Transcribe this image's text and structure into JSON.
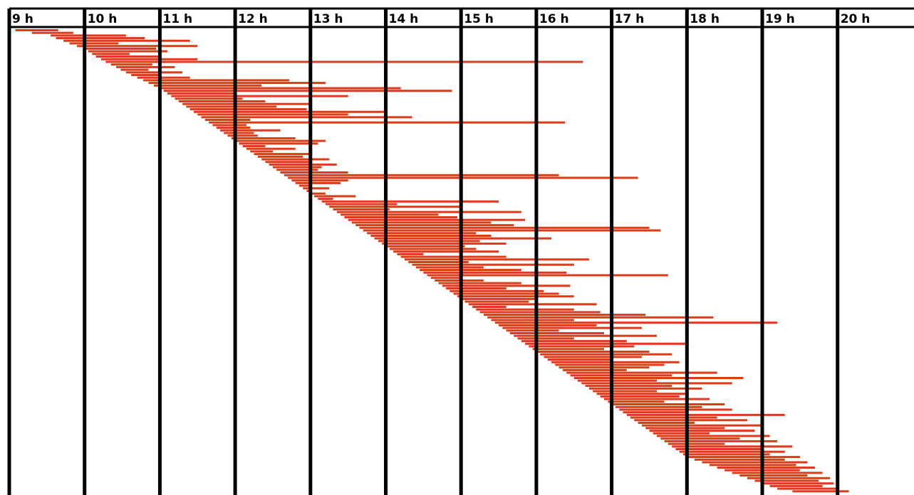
{
  "chart_data": {
    "type": "gantt",
    "title": "",
    "xlabel": "",
    "ylabel": "",
    "x_range_hours": [
      9,
      20
    ],
    "hour_labels": [
      "9 h",
      "10 h",
      "11 h",
      "12 h",
      "13 h",
      "14 h",
      "15 h",
      "16 h",
      "17 h",
      "18 h",
      "19 h",
      "20 h"
    ],
    "grid": true,
    "bar_color": "#dd3b19",
    "line_color": "#000000",
    "series": [
      {
        "values": [
          [
            9.08,
            9.65
          ],
          [
            9.3,
            9.85
          ],
          [
            9.55,
            10.55
          ],
          [
            9.62,
            10.8
          ],
          [
            9.72,
            11.4
          ],
          [
            9.8,
            10.45
          ],
          [
            9.9,
            11.5
          ],
          [
            10.02,
            10.95
          ],
          [
            10.05,
            11.1
          ],
          [
            10.1,
            10.6
          ],
          [
            10.15,
            11.0
          ],
          [
            10.22,
            11.5
          ],
          [
            10.28,
            16.62
          ],
          [
            10.35,
            10.9
          ],
          [
            10.42,
            11.2
          ],
          [
            10.48,
            10.85
          ],
          [
            10.55,
            11.3
          ],
          [
            10.62,
            11.0
          ],
          [
            10.7,
            11.4
          ],
          [
            10.78,
            12.72
          ],
          [
            10.85,
            13.2
          ],
          [
            10.92,
            12.35
          ],
          [
            11.0,
            14.2
          ],
          [
            11.05,
            14.88
          ],
          [
            11.1,
            12.0
          ],
          [
            11.15,
            13.5
          ],
          [
            11.2,
            12.1
          ],
          [
            11.25,
            12.4
          ],
          [
            11.3,
            13.0
          ],
          [
            11.35,
            12.55
          ],
          [
            11.4,
            12.95
          ],
          [
            11.45,
            14.0
          ],
          [
            11.5,
            13.5
          ],
          [
            11.55,
            14.35
          ],
          [
            11.6,
            12.2
          ],
          [
            11.65,
            16.38
          ],
          [
            11.7,
            12.15
          ],
          [
            11.75,
            12.2
          ],
          [
            11.8,
            12.6
          ],
          [
            11.85,
            12.25
          ],
          [
            11.9,
            12.3
          ],
          [
            11.95,
            12.8
          ],
          [
            12.0,
            13.2
          ],
          [
            12.05,
            13.1
          ],
          [
            12.1,
            12.4
          ],
          [
            12.15,
            12.8
          ],
          [
            12.2,
            12.5
          ],
          [
            12.25,
            13.0
          ],
          [
            12.3,
            12.9
          ],
          [
            12.35,
            13.25
          ],
          [
            12.4,
            13.0
          ],
          [
            12.45,
            13.35
          ],
          [
            12.5,
            13.15
          ],
          [
            12.55,
            13.1
          ],
          [
            12.6,
            13.5
          ],
          [
            12.65,
            16.3
          ],
          [
            12.7,
            17.35
          ],
          [
            12.75,
            13.5
          ],
          [
            12.8,
            13.4
          ],
          [
            12.85,
            13.0
          ],
          [
            12.9,
            13.25
          ],
          [
            12.95,
            13.0
          ],
          [
            13.0,
            13.2
          ],
          [
            13.05,
            13.6
          ],
          [
            13.1,
            13.3
          ],
          [
            13.15,
            15.5
          ],
          [
            13.2,
            14.15
          ],
          [
            13.25,
            15.0
          ],
          [
            13.3,
            14.05
          ],
          [
            13.35,
            15.8
          ],
          [
            13.4,
            14.7
          ],
          [
            13.45,
            14.95
          ],
          [
            13.5,
            15.85
          ],
          [
            13.55,
            15.4
          ],
          [
            13.6,
            15.7
          ],
          [
            13.65,
            17.5
          ],
          [
            13.7,
            17.65
          ],
          [
            13.75,
            15.2
          ],
          [
            13.8,
            15.4
          ],
          [
            13.85,
            16.2
          ],
          [
            13.9,
            15.25
          ],
          [
            13.95,
            15.6
          ],
          [
            14.0,
            15.05
          ],
          [
            14.05,
            15.2
          ],
          [
            14.1,
            15.5
          ],
          [
            14.15,
            14.5
          ],
          [
            14.2,
            15.6
          ],
          [
            14.25,
            16.7
          ],
          [
            14.3,
            15.1
          ],
          [
            14.35,
            16.5
          ],
          [
            14.4,
            15.3
          ],
          [
            14.45,
            15.8
          ],
          [
            14.5,
            16.4
          ],
          [
            14.55,
            17.75
          ],
          [
            14.6,
            15.0
          ],
          [
            14.65,
            15.3
          ],
          [
            14.7,
            15.8
          ],
          [
            14.75,
            16.45
          ],
          [
            14.8,
            15.6
          ],
          [
            14.85,
            16.1
          ],
          [
            14.9,
            16.3
          ],
          [
            14.95,
            16.5
          ],
          [
            15.0,
            16.0
          ],
          [
            15.05,
            15.9
          ],
          [
            15.1,
            16.8
          ],
          [
            15.15,
            15.6
          ],
          [
            15.2,
            16.5
          ],
          [
            15.25,
            16.85
          ],
          [
            15.3,
            17.45
          ],
          [
            15.35,
            18.35
          ],
          [
            15.4,
            16.5
          ],
          [
            15.45,
            19.2
          ],
          [
            15.5,
            16.8
          ],
          [
            15.55,
            17.4
          ],
          [
            15.6,
            16.3
          ],
          [
            15.65,
            16.9
          ],
          [
            15.7,
            17.6
          ],
          [
            15.75,
            16.5
          ],
          [
            15.8,
            17.2
          ],
          [
            15.85,
            18.0
          ],
          [
            15.9,
            17.3
          ],
          [
            15.95,
            16.9
          ],
          [
            16.0,
            17.5
          ],
          [
            16.05,
            17.8
          ],
          [
            16.1,
            17.4
          ],
          [
            16.15,
            17.0
          ],
          [
            16.2,
            17.9
          ],
          [
            16.25,
            17.7
          ],
          [
            16.3,
            17.5
          ],
          [
            16.35,
            17.2
          ],
          [
            16.4,
            18.4
          ],
          [
            16.45,
            17.8
          ],
          [
            16.5,
            18.75
          ],
          [
            16.55,
            17.6
          ],
          [
            16.6,
            18.6
          ],
          [
            16.65,
            17.8
          ],
          [
            16.7,
            18.2
          ],
          [
            16.75,
            17.6
          ],
          [
            16.8,
            18.0
          ],
          [
            16.85,
            17.9
          ],
          [
            16.9,
            18.3
          ],
          [
            16.95,
            17.7
          ],
          [
            17.0,
            18.5
          ],
          [
            17.05,
            18.2
          ],
          [
            17.1,
            18.6
          ],
          [
            17.15,
            18.0
          ],
          [
            17.2,
            19.3
          ],
          [
            17.25,
            18.4
          ],
          [
            17.3,
            18.8
          ],
          [
            17.35,
            18.1
          ],
          [
            17.4,
            19.0
          ],
          [
            17.45,
            18.5
          ],
          [
            17.5,
            18.9
          ],
          [
            17.55,
            18.3
          ],
          [
            17.6,
            19.1
          ],
          [
            17.65,
            18.7
          ],
          [
            17.7,
            19.2
          ],
          [
            17.75,
            18.5
          ],
          [
            17.8,
            19.4
          ],
          [
            17.85,
            19.0
          ],
          [
            17.9,
            19.3
          ],
          [
            17.95,
            19.1
          ],
          [
            18.0,
            19.5
          ],
          [
            18.1,
            19.3
          ],
          [
            18.2,
            19.6
          ],
          [
            18.3,
            19.45
          ],
          [
            18.4,
            19.7
          ],
          [
            18.5,
            19.5
          ],
          [
            18.6,
            19.8
          ],
          [
            18.7,
            19.6
          ],
          [
            18.8,
            19.9
          ],
          [
            18.9,
            19.75
          ],
          [
            19.0,
            19.95
          ],
          [
            19.1,
            19.8
          ],
          [
            19.2,
            20.0
          ],
          [
            19.4,
            20.15
          ]
        ]
      }
    ]
  }
}
